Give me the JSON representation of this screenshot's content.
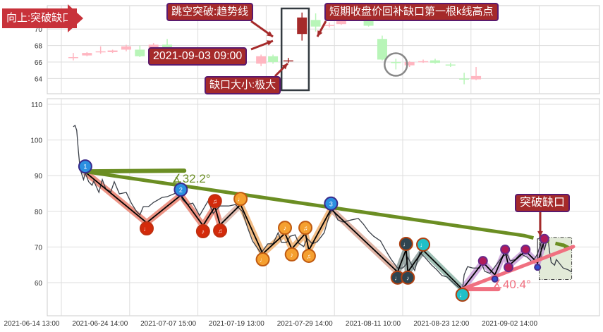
{
  "chart_data": [
    {
      "type": "candlestick",
      "panel": "top",
      "y_ticks": [
        64,
        66,
        68,
        70
      ],
      "ylim": [
        62.9,
        72.7
      ],
      "colors": {
        "up": "#ffb6c1",
        "down": "#b8f5b8",
        "highlight": "#a52a2a"
      },
      "candles": [
        {
          "x": 7,
          "o": 66.6,
          "c": 66.6,
          "h": 67.1,
          "l": 66.2,
          "dir": "up"
        },
        {
          "x": 15,
          "o": 66.8,
          "c": 67.1,
          "h": 67.2,
          "l": 66.7,
          "dir": "up"
        },
        {
          "x": 23,
          "o": 67.3,
          "c": 67.3,
          "h": 67.9,
          "l": 67.0,
          "dir": "up"
        },
        {
          "x": 30,
          "o": 67.2,
          "c": 67.4,
          "h": 67.5,
          "l": 67.1,
          "dir": "up"
        },
        {
          "x": 38,
          "o": 67.5,
          "c": 67.9,
          "h": 68.1,
          "l": 67.3,
          "dir": "up"
        },
        {
          "x": 46,
          "o": 67.5,
          "c": 66.7,
          "h": 68.0,
          "l": 66.6,
          "dir": "down"
        },
        {
          "x": 54,
          "o": 67.7,
          "c": 68.1,
          "h": 68.3,
          "l": 67.6,
          "dir": "up"
        },
        {
          "x": 62,
          "o": 68.1,
          "c": 67.6,
          "h": 68.8,
          "l": 67.5,
          "dir": "down"
        },
        {
          "x": 117,
          "o": 65.8,
          "c": 66.7,
          "h": 66.9,
          "l": 65.5,
          "dir": "up"
        },
        {
          "x": 124,
          "o": 66.7,
          "c": 66.0,
          "h": 66.9,
          "l": 65.8,
          "dir": "down"
        },
        {
          "x": 133,
          "o": 66.2,
          "c": 66.2,
          "h": 66.5,
          "l": 65.9,
          "dir": "highlight"
        },
        {
          "x": 141,
          "o": 69.4,
          "c": 71.4,
          "h": 72.0,
          "l": 68.6,
          "dir": "highlight"
        },
        {
          "x": 149,
          "o": 71.1,
          "c": 70.3,
          "h": 71.9,
          "l": 69.7,
          "dir": "down"
        },
        {
          "x": 157,
          "o": 70.5,
          "c": 70.5,
          "h": 70.8,
          "l": 70.2,
          "dir": "up"
        },
        {
          "x": 164,
          "o": 70.6,
          "c": 71.0,
          "h": 71.1,
          "l": 70.5,
          "dir": "up"
        },
        {
          "x": 180,
          "o": 71.0,
          "c": 70.4,
          "h": 71.2,
          "l": 70.3,
          "dir": "down"
        },
        {
          "x": 188,
          "o": 68.8,
          "c": 66.3,
          "h": 69.2,
          "l": 66.2,
          "dir": "down"
        },
        {
          "x": 196,
          "o": 66.0,
          "c": 66.0,
          "h": 66.4,
          "l": 65.1,
          "dir": "down"
        },
        {
          "x": 204,
          "o": 65.6,
          "c": 66.0,
          "h": 66.1,
          "l": 65.4,
          "dir": "up"
        },
        {
          "x": 212,
          "o": 66.1,
          "c": 66.1,
          "h": 66.3,
          "l": 65.9,
          "dir": "up"
        },
        {
          "x": 219,
          "o": 66.2,
          "c": 65.9,
          "h": 66.4,
          "l": 65.8,
          "dir": "down"
        },
        {
          "x": 228,
          "o": 65.7,
          "c": 65.7,
          "h": 65.9,
          "l": 65.4,
          "dir": "down"
        },
        {
          "x": 236,
          "o": 64.0,
          "c": 64.0,
          "h": 64.7,
          "l": 63.3,
          "dir": "down"
        },
        {
          "x": 243,
          "o": 63.9,
          "c": 64.3,
          "h": 65.4,
          "l": 63.8,
          "dir": "up"
        }
      ],
      "circled_candle_x": 196,
      "boxed_range_x": [
        129,
        145
      ]
    },
    {
      "type": "line",
      "panel": "main",
      "y_ticks": [
        60,
        70,
        80,
        90,
        100,
        110
      ],
      "ylim": [
        50.6,
        111.6
      ],
      "x_tick_labels": [
        "2021-06-14 13:00",
        "2021-06-24 14:00",
        "2021-07-07 15:00",
        "2021-07-19 13:00",
        "2021-07-29 14:00",
        "2021-08-11 10:00",
        "2021-08-23 12:00",
        "2021-09-02 14:00"
      ],
      "x_tick_index": [
        0,
        40,
        80,
        120,
        160,
        200,
        240,
        280
      ],
      "grid": true,
      "price": [
        [
          7,
          103.7
        ],
        [
          8,
          104.1
        ],
        [
          9,
          102.7
        ],
        [
          10,
          96.8
        ],
        [
          11,
          91.8
        ],
        [
          13,
          88.9
        ],
        [
          14,
          90.8
        ],
        [
          16,
          88.3
        ],
        [
          18,
          87.3
        ],
        [
          19,
          88.5
        ],
        [
          22,
          85.3
        ],
        [
          24,
          88.9
        ],
        [
          26,
          86.3
        ],
        [
          29,
          85.5
        ],
        [
          31,
          88.3
        ],
        [
          34,
          84.9
        ],
        [
          38,
          85.3
        ],
        [
          41,
          82.3
        ],
        [
          44,
          80.0
        ],
        [
          46,
          79.0
        ],
        [
          48,
          81.3
        ],
        [
          51,
          81.3
        ],
        [
          54,
          82.5
        ],
        [
          57,
          83.3
        ],
        [
          59,
          83.9
        ],
        [
          62,
          84.1
        ],
        [
          66,
          84.9
        ],
        [
          69,
          85.5
        ],
        [
          71,
          83.3
        ],
        [
          74,
          81.9
        ],
        [
          77,
          82.3
        ],
        [
          81,
          78.8
        ],
        [
          84,
          81.3
        ],
        [
          86,
          82.9
        ],
        [
          89,
          79.4
        ],
        [
          93,
          81.5
        ],
        [
          98,
          81.5
        ],
        [
          102,
          81.9
        ],
        [
          106,
          80.0
        ],
        [
          109,
          75.6
        ],
        [
          112,
          71.7
        ],
        [
          116,
          68.9
        ],
        [
          117,
          68.3
        ],
        [
          121,
          70.9
        ],
        [
          124,
          70.9
        ],
        [
          127,
          74.0
        ],
        [
          129,
          71.3
        ],
        [
          132,
          71.3
        ],
        [
          134,
          73.0
        ],
        [
          137,
          73.4
        ],
        [
          139,
          71.1
        ],
        [
          142,
          70.1
        ],
        [
          144,
          72.4
        ],
        [
          147,
          70.9
        ],
        [
          150,
          71.5
        ],
        [
          154,
          74.0
        ],
        [
          157,
          79.0
        ],
        [
          159,
          80.7
        ],
        [
          162,
          77.6
        ],
        [
          165,
          77.0
        ],
        [
          170,
          77.6
        ],
        [
          174,
          78.0
        ],
        [
          177,
          76.4
        ],
        [
          180,
          74.4
        ],
        [
          183,
          73.0
        ],
        [
          187,
          71.7
        ],
        [
          190,
          69.1
        ],
        [
          193,
          66.7
        ],
        [
          197,
          64.1
        ],
        [
          200,
          64.1
        ],
        [
          202,
          65.1
        ],
        [
          203,
          67.1
        ],
        [
          207,
          63.4
        ],
        [
          210,
          68.5
        ],
        [
          213,
          67.1
        ],
        [
          217,
          64.9
        ],
        [
          220,
          63.6
        ],
        [
          223,
          62.0
        ],
        [
          226,
          61.6
        ],
        [
          230,
          59.8
        ],
        [
          233,
          58.6
        ],
        [
          235,
          58.0
        ],
        [
          236,
          62.2
        ],
        [
          238,
          64.5
        ],
        [
          241,
          64.1
        ],
        [
          245,
          64.1
        ],
        [
          246,
          65.7
        ],
        [
          248,
          63.2
        ],
        [
          251,
          62.6
        ],
        [
          255,
          65.1
        ],
        [
          258,
          67.1
        ],
        [
          261,
          68.1
        ],
        [
          263,
          66.1
        ],
        [
          266,
          66.5
        ],
        [
          269,
          68.1
        ],
        [
          273,
          67.1
        ],
        [
          276,
          65.7
        ],
        [
          279,
          68.1
        ],
        [
          281,
          71.1
        ],
        [
          282,
          71.7
        ],
        [
          283,
          69.1
        ],
        [
          285,
          73.0
        ],
        [
          286,
          68.9
        ],
        [
          287,
          65.7
        ],
        [
          289,
          64.9
        ],
        [
          290,
          66.5
        ],
        [
          294,
          64.1
        ],
        [
          297,
          63.6
        ],
        [
          299,
          63.0
        ]
      ],
      "zigzag_segments": [
        {
          "color": "#e9806e",
          "points": [
            [
              14,
              91.0
            ],
            [
              50,
              76.8
            ],
            [
              70,
              84.5
            ],
            [
              83,
              76.0
            ],
            [
              90,
              81.3
            ],
            [
              93,
              76.2
            ]
          ]
        },
        {
          "color": "#dcb4a8",
          "points": [
            [
              93,
              76.2
            ],
            [
              105,
              81.9
            ]
          ]
        },
        {
          "color": "#f0b070",
          "points": [
            [
              105,
              81.9
            ],
            [
              118,
              68.1
            ],
            [
              131,
              73.8
            ],
            [
              135,
              69.5
            ],
            [
              143,
              73.8
            ],
            [
              145,
              69.1
            ],
            [
              158,
              80.6
            ]
          ]
        },
        {
          "color": "#d9a898",
          "points": [
            [
              158,
              80.6
            ],
            [
              197,
              63.0
            ]
          ]
        },
        {
          "color": "#8a9a98",
          "points": [
            [
              197,
              63.0
            ],
            [
              202,
              69.3
            ],
            [
              203,
              63.0
            ],
            [
              212,
              69.1
            ]
          ]
        },
        {
          "color": "#8fb5a8",
          "points": [
            [
              212,
              69.1
            ],
            [
              235,
              58.2
            ]
          ]
        },
        {
          "color": "#c9a0d8",
          "points": [
            [
              235,
              58.2
            ],
            [
              247,
              65.7
            ],
            [
              254,
              62.2
            ],
            [
              260,
              68.9
            ],
            [
              262,
              64.7
            ],
            [
              272,
              68.9
            ],
            [
              279,
              65.5
            ],
            [
              283,
              71.9
            ]
          ]
        }
      ],
      "markers": [
        {
          "x": 14,
          "y": 91.0,
          "pos": "high",
          "fill": "#2b8fe0",
          "ring": "#3a2a8a",
          "glyph": "1"
        },
        {
          "x": 70,
          "y": 84.5,
          "pos": "high",
          "fill": "#2b8fe0",
          "ring": "#3a2a8a",
          "glyph": "2"
        },
        {
          "x": 158,
          "y": 80.6,
          "pos": "high",
          "fill": "#2b8fe0",
          "ring": "#3a2a8a",
          "glyph": "3"
        },
        {
          "x": 50,
          "y": 76.8,
          "pos": "low",
          "fill": "#d42a0a",
          "ring": "#c03010",
          "glyph": "♩"
        },
        {
          "x": 83,
          "y": 76.0,
          "pos": "low",
          "fill": "#d42a0a",
          "ring": "#c03010",
          "glyph": "♪"
        },
        {
          "x": 90,
          "y": 81.3,
          "pos": "high",
          "fill": "#d42a0a",
          "ring": "#c03010",
          "glyph": "♫"
        },
        {
          "x": 93,
          "y": 76.2,
          "pos": "low",
          "fill": "#d42a0a",
          "ring": "#c03010",
          "glyph": "♫"
        },
        {
          "x": 105,
          "y": 81.9,
          "pos": "high",
          "fill": "#f5a030",
          "ring": "#c05a10",
          "glyph": "♩"
        },
        {
          "x": 118,
          "y": 68.1,
          "pos": "low",
          "fill": "#f5a030",
          "ring": "#c05a10",
          "glyph": "♩"
        },
        {
          "x": 131,
          "y": 73.8,
          "pos": "high",
          "fill": "#f5a030",
          "ring": "#c05a10",
          "glyph": "♪"
        },
        {
          "x": 135,
          "y": 69.5,
          "pos": "low",
          "fill": "#f5a030",
          "ring": "#c05a10",
          "glyph": "♪"
        },
        {
          "x": 143,
          "y": 73.8,
          "pos": "high",
          "fill": "#f5a030",
          "ring": "#c05a10",
          "glyph": "♫"
        },
        {
          "x": 145,
          "y": 69.1,
          "pos": "low",
          "fill": "#f5a030",
          "ring": "#c05a10",
          "glyph": "♫"
        },
        {
          "x": 197,
          "y": 63.0,
          "pos": "low",
          "fill": "#2f4550",
          "ring": "#b04010",
          "glyph": "♩"
        },
        {
          "x": 202,
          "y": 69.3,
          "pos": "high",
          "fill": "#2f4550",
          "ring": "#b04010",
          "glyph": "♩"
        },
        {
          "x": 203,
          "y": 63.0,
          "pos": "low",
          "fill": "#2f4550",
          "ring": "#b04010",
          "glyph": "♪"
        },
        {
          "x": 212,
          "y": 69.1,
          "pos": "high",
          "fill": "#20c0c8",
          "ring": "#b04010",
          "glyph": "♩"
        },
        {
          "x": 235,
          "y": 58.2,
          "pos": "low",
          "fill": "#20c0c8",
          "ring": "#b04010",
          "glyph": "♩"
        },
        {
          "x": 247,
          "y": 65.7,
          "pos": "high",
          "fill": "#b01a5a",
          "ring": "#6a2a8a",
          "glyph": "",
          "small": true
        },
        {
          "x": 260,
          "y": 68.9,
          "pos": "high",
          "fill": "#b01a5a",
          "ring": "#6a2a8a",
          "glyph": "",
          "small": true
        },
        {
          "x": 262,
          "y": 64.7,
          "pos": "low",
          "fill": "#b01a5a",
          "ring": "#6a2a8a",
          "glyph": "",
          "small": true
        },
        {
          "x": 272,
          "y": 68.9,
          "pos": "high",
          "fill": "#b01a5a",
          "ring": "#6a2a8a",
          "glyph": "",
          "small": true
        },
        {
          "x": 283,
          "y": 71.9,
          "pos": "high",
          "fill": "#b01a5a",
          "ring": "#6a2a8a",
          "glyph": "",
          "small": true
        },
        {
          "x": 254,
          "y": 62.2,
          "pos": "low",
          "fill": "#3050d0",
          "ring": "#4a2a8a",
          "glyph": "",
          "tiny": true
        },
        {
          "x": 279,
          "y": 65.5,
          "pos": "low",
          "fill": "#3050d0",
          "ring": "#4a2a8a",
          "glyph": "",
          "tiny": true
        }
      ],
      "trendlines": [
        {
          "color": "#6b8e23",
          "from": [
            13,
            91.2
          ],
          "to": [
            271,
            73.2
          ],
          "dashed_to": [
            299,
            69.9
          ],
          "ref_to": [
            72,
            91.4
          ],
          "angle_label": "∡32.2°"
        },
        {
          "color": "#f07080",
          "from": [
            235,
            58.2
          ],
          "to": [
            300,
            70.1
          ],
          "ref_to": [
            256,
            58.2
          ],
          "angle_label": "∡40.4°"
        }
      ],
      "gap_box": {
        "x": [
          280,
          299
        ],
        "y": [
          60.9,
          72.7
        ]
      },
      "gap_candle_box": {
        "x": [
          279,
          281
        ],
        "y": [
          66.3,
          72.3
        ]
      }
    }
  ],
  "annotations": {
    "direction": "向上:突破缺口",
    "gap_break": "跳空突破:趋势线",
    "gap_time": "2021-09-03 09:00",
    "gap_size": "缺口大小:极大",
    "refill": "短期收盘价回补缺口第一根k线高点",
    "break_gap": "突破缺口"
  }
}
